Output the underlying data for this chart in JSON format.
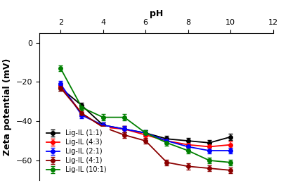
{
  "title": "",
  "xlabel": "pH",
  "ylabel": "Zeta potential (mV)",
  "xlim": [
    1,
    12
  ],
  "ylim": [
    -70,
    5
  ],
  "xticks": [
    2,
    4,
    6,
    8,
    10,
    12
  ],
  "yticks": [
    0,
    -20,
    -40,
    -60
  ],
  "series": [
    {
      "label": "Lig-IL (1:1)",
      "color": "#000000",
      "ph": [
        2,
        3,
        4,
        5,
        6,
        7,
        8,
        9,
        10
      ],
      "zeta": [
        -23,
        -32,
        -42,
        -44,
        -46,
        -49,
        -50,
        -51,
        -48
      ],
      "yerr": [
        1.5,
        1.5,
        1.5,
        1.5,
        1.5,
        1.5,
        1.5,
        1.5,
        1.5
      ]
    },
    {
      "label": "Lig-IL (4:3)",
      "color": "#ff0000",
      "ph": [
        2,
        3,
        4,
        5,
        6,
        7,
        8,
        9,
        10
      ],
      "zeta": [
        -22,
        -36,
        -43,
        -44,
        -47,
        -50,
        -52,
        -53,
        -52
      ],
      "yerr": [
        1.5,
        1.5,
        1.5,
        1.5,
        1.5,
        1.5,
        1.5,
        1.5,
        1.5
      ]
    },
    {
      "label": "Lig-IL (2:1)",
      "color": "#0000ff",
      "ph": [
        2,
        3,
        4,
        5,
        6,
        7,
        8,
        9,
        10
      ],
      "zeta": [
        -21,
        -37,
        -42,
        -44,
        -46,
        -50,
        -53,
        -55,
        -55
      ],
      "yerr": [
        1.5,
        1.5,
        1.5,
        1.5,
        1.5,
        1.5,
        1.5,
        1.5,
        1.5
      ]
    },
    {
      "label": "Lig-IL (4:1)",
      "color": "#8B0000",
      "ph": [
        2,
        3,
        4,
        5,
        6,
        7,
        8,
        9,
        10
      ],
      "zeta": [
        -23,
        -36,
        -43,
        -47,
        -50,
        -61,
        -63,
        -64,
        -65
      ],
      "yerr": [
        1.5,
        1.5,
        1.5,
        1.5,
        1.5,
        1.5,
        1.5,
        1.5,
        1.5
      ]
    },
    {
      "label": "Lig-IL (10:1)",
      "color": "#008000",
      "ph": [
        2,
        3,
        4,
        5,
        6,
        7,
        8,
        9,
        10
      ],
      "zeta": [
        -13,
        -33,
        -38,
        -38,
        -46,
        -51,
        -55,
        -60,
        -61
      ],
      "yerr": [
        1.5,
        1.5,
        1.5,
        1.5,
        1.5,
        1.5,
        1.5,
        1.5,
        1.5
      ]
    }
  ],
  "legend_loc": "lower left",
  "background_color": "#ffffff",
  "marker": "o",
  "markersize": 4,
  "linewidth": 1.3,
  "capsize": 2,
  "elinewidth": 0.8,
  "fontsize_labels": 9,
  "fontsize_ticks": 8,
  "fontsize_legend": 7
}
